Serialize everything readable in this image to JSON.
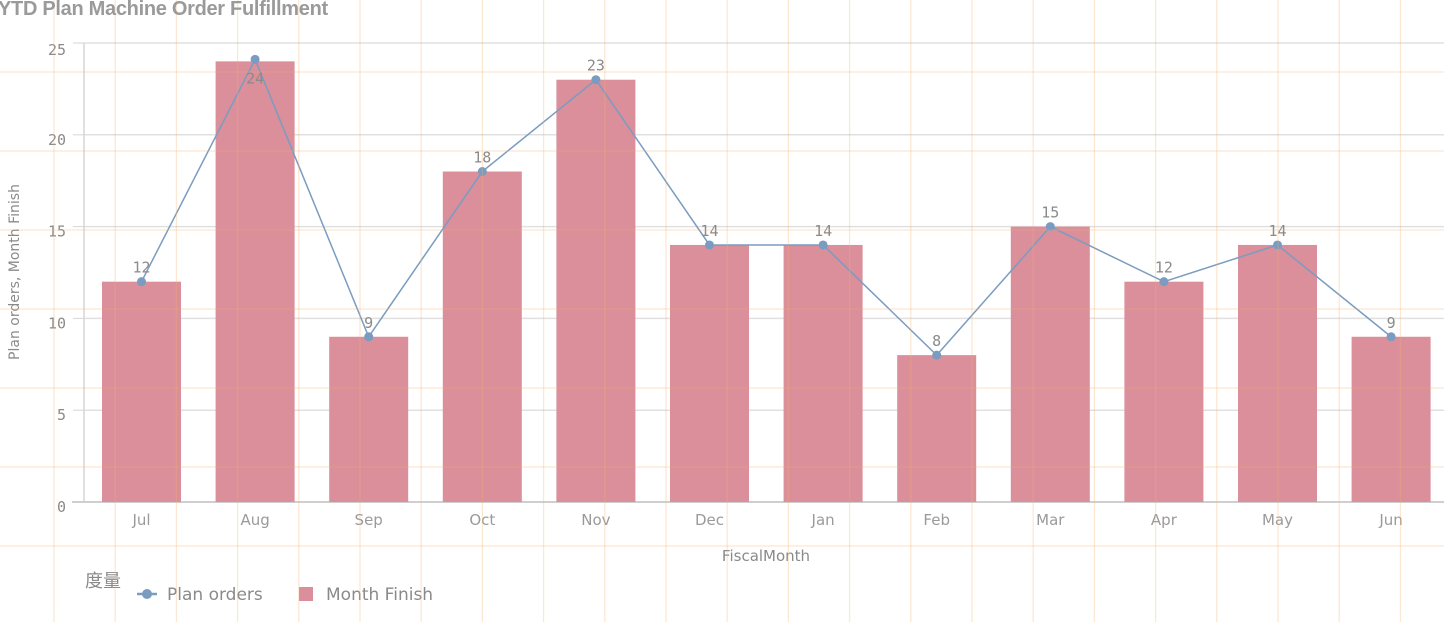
{
  "chart_data": {
    "type": "bar+line",
    "title": "YTD Plan Machine Order Fulfillment",
    "xlabel": "FiscalMonth",
    "ylabel": "Plan orders, Month Finish",
    "ylim": [
      0,
      25
    ],
    "yticks": [
      0,
      5,
      10,
      15,
      20,
      25
    ],
    "categories": [
      "Jul",
      "Aug",
      "Sep",
      "Oct",
      "Nov",
      "Dec",
      "Jan",
      "Feb",
      "Mar",
      "Apr",
      "May",
      "Jun"
    ],
    "series": [
      {
        "name": "Plan orders",
        "type": "line",
        "color": "#7a9cc0",
        "values": [
          12,
          24,
          9,
          18,
          23,
          14,
          14,
          8,
          15,
          12,
          14,
          9
        ]
      },
      {
        "name": "Month Finish",
        "type": "bar",
        "color": "#da8f9b",
        "values": [
          12,
          24,
          9,
          18,
          23,
          14,
          14,
          8,
          15,
          12,
          14,
          9
        ]
      }
    ],
    "data_labels": [
      12,
      24,
      9,
      18,
      23,
      14,
      14,
      8,
      15,
      12,
      14,
      9
    ],
    "grid": true,
    "legend_position": "bottom-left"
  },
  "legend": {
    "title": "度量",
    "items": [
      {
        "label": "Plan orders",
        "symbol": "line-dot",
        "color": "#7a9cc0"
      },
      {
        "label": "Month Finish",
        "symbol": "square",
        "color": "#da8f9b"
      }
    ]
  }
}
